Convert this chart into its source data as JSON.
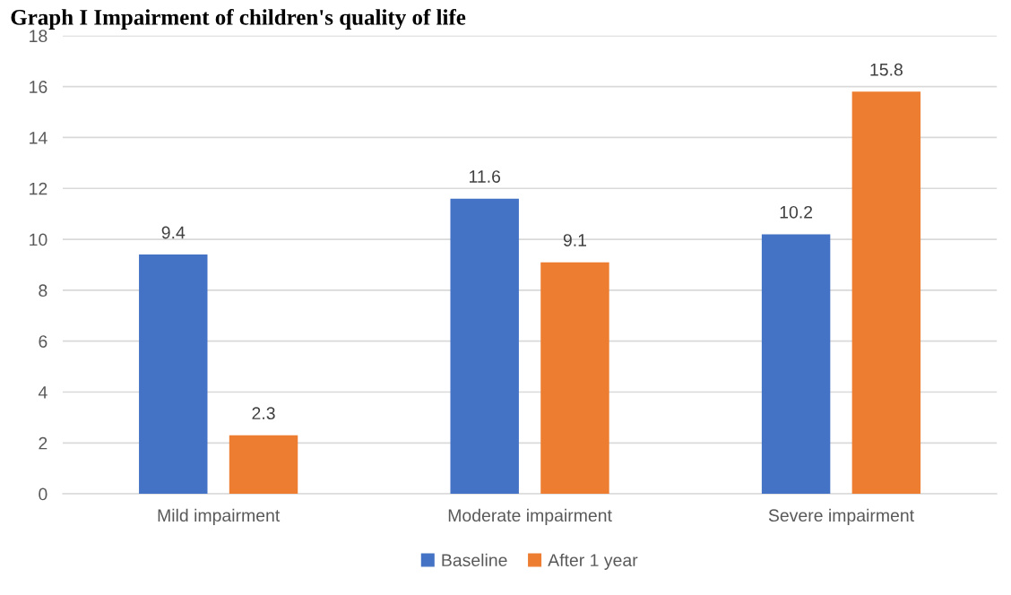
{
  "chart_data": {
    "type": "bar",
    "title": "Graph I Impairment of children's quality of life",
    "categories": [
      "Mild impairment",
      "Moderate impairment",
      "Severe impairment"
    ],
    "series": [
      {
        "name": "Baseline",
        "color": "#4472c4",
        "values": [
          9.4,
          11.6,
          10.2
        ]
      },
      {
        "name": "After 1 year",
        "color": "#ed7d31",
        "values": [
          2.3,
          9.1,
          15.8
        ]
      }
    ],
    "ylim": [
      0,
      18
    ],
    "yticks": [
      0,
      2,
      4,
      6,
      8,
      10,
      12,
      14,
      16,
      18
    ],
    "grid": "y",
    "legend": "bottom",
    "data_labels": true
  }
}
